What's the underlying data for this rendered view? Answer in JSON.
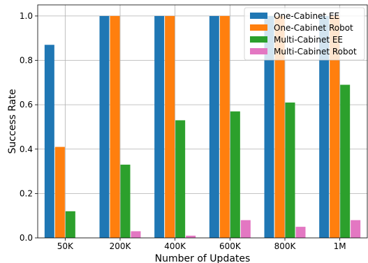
{
  "chart_data": {
    "type": "bar",
    "xlabel": "Number of Updates",
    "ylabel": "Success Rate",
    "categories": [
      "50K",
      "200K",
      "400K",
      "600K",
      "800K",
      "1M"
    ],
    "ylim": [
      0,
      1.05
    ],
    "yticks": [
      "0.0",
      "0.2",
      "0.4",
      "0.6",
      "0.8",
      "1.0"
    ],
    "grid": true,
    "legend_position": "top-right",
    "series": [
      {
        "name": "One-Cabinet EE",
        "color": "#1f77b4",
        "values": [
          0.87,
          1.0,
          1.0,
          1.0,
          1.0,
          1.0
        ]
      },
      {
        "name": "One-Cabinet Robot",
        "color": "#ff7f0e",
        "values": [
          0.41,
          1.0,
          1.0,
          1.0,
          1.0,
          1.0
        ]
      },
      {
        "name": "Multi-Cabinet EE",
        "color": "#2ca02c",
        "values": [
          0.12,
          0.33,
          0.53,
          0.57,
          0.61,
          0.69
        ]
      },
      {
        "name": "Multi-Cabinet Robot",
        "color": "#e377c2",
        "values": [
          0.0,
          0.03,
          0.01,
          0.08,
          0.05,
          0.08
        ]
      }
    ]
  }
}
